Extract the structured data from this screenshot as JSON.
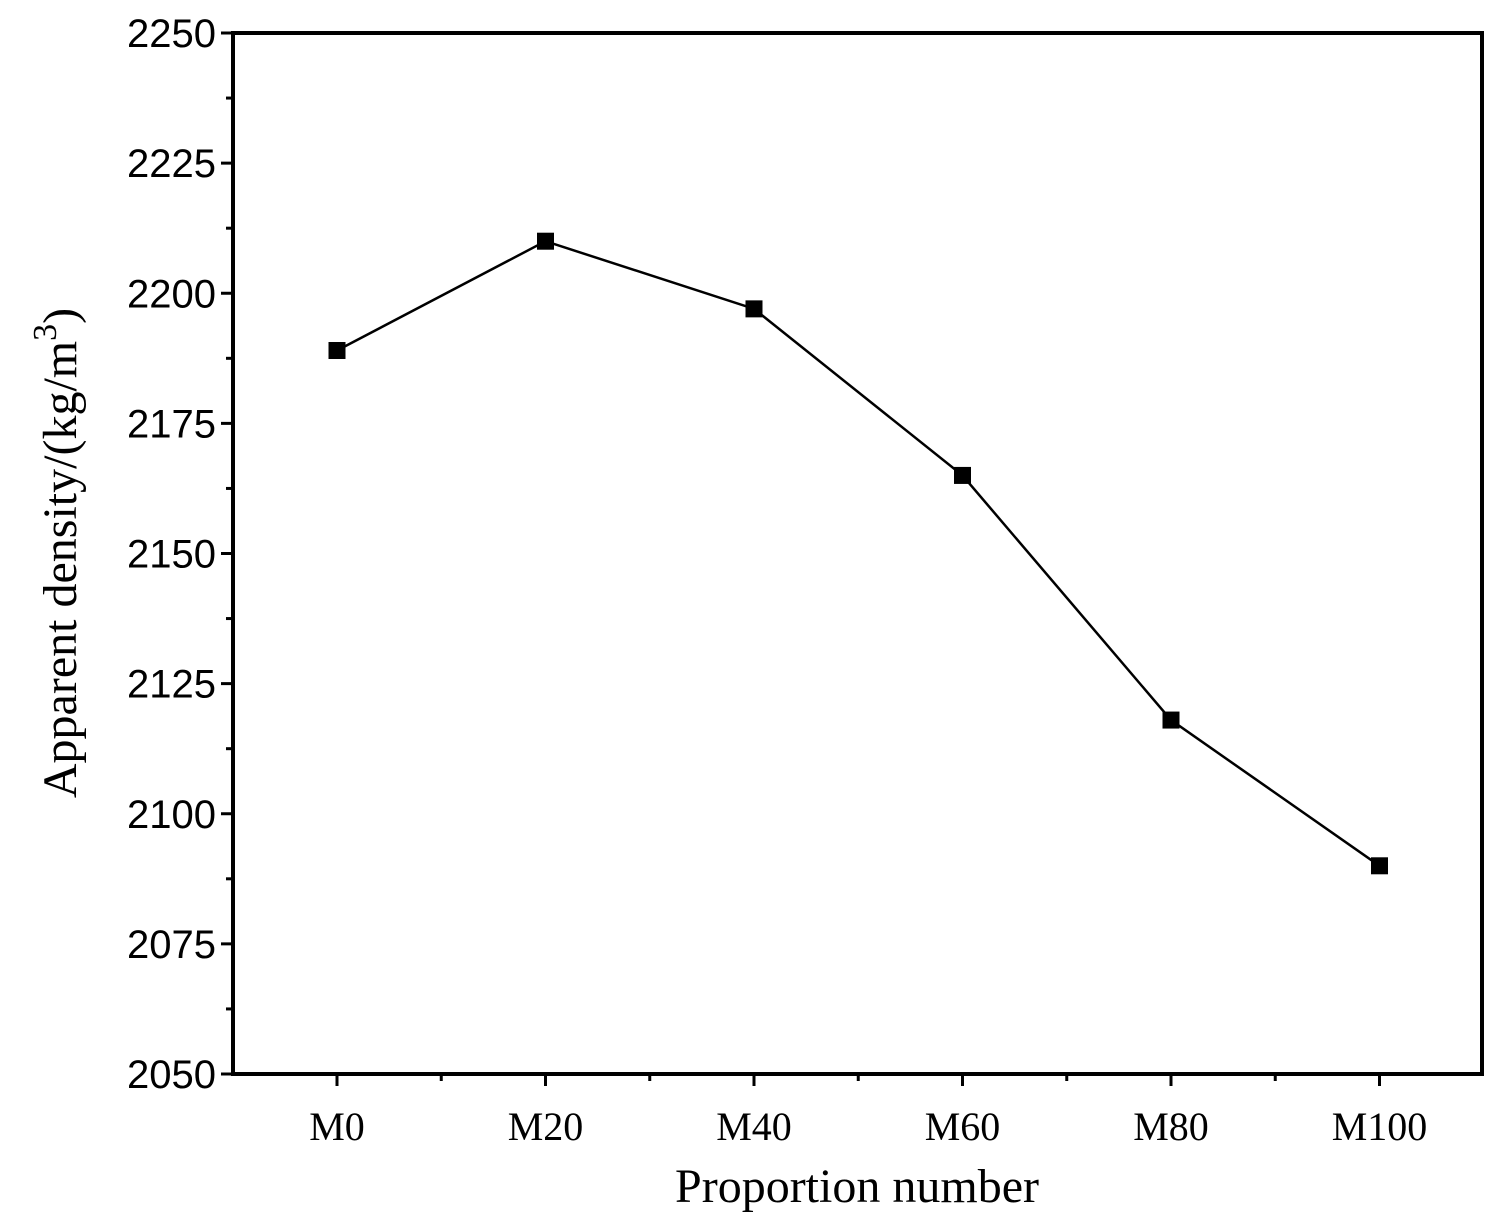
{
  "chart_data": {
    "type": "line",
    "title": "",
    "xlabel": "Proportion number",
    "ylabel": "Apparent density/(kg/m",
    "ylabel_superscript": "3",
    "ylabel_suffix": ")",
    "categories": [
      "M0",
      "M20",
      "M40",
      "M60",
      "M80",
      "M100"
    ],
    "series": [
      {
        "values": [
          2189,
          2210,
          2197,
          2165,
          2118,
          2090
        ],
        "color": "#000000",
        "marker": "square"
      }
    ],
    "ylim": [
      2050,
      2250
    ],
    "yticks": [
      2050,
      2075,
      2100,
      2125,
      2150,
      2175,
      2200,
      2225,
      2250
    ],
    "yticks_labels": [
      "2050",
      "2075",
      "2100",
      "2125",
      "2150",
      "2175",
      "2200",
      "2225",
      "2250"
    ],
    "grid": false,
    "legend": "none"
  }
}
